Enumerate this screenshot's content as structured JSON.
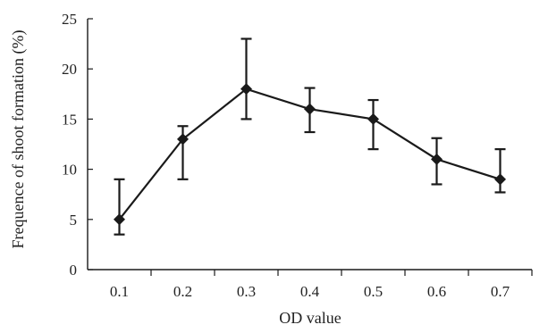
{
  "chart_data": {
    "type": "line",
    "title": "",
    "xlabel": "OD value",
    "ylabel": "Frequence of shoot formation (%)",
    "x": [
      "0.1",
      "0.2",
      "0.3",
      "0.4",
      "0.5",
      "0.6",
      "0.7"
    ],
    "ylim": [
      0,
      25
    ],
    "yticks": [
      "0",
      "5",
      "10",
      "15",
      "20",
      "25"
    ],
    "grid": false,
    "legend": "none",
    "series": [
      {
        "values": [
          5,
          13,
          18,
          16,
          15,
          11,
          9
        ],
        "error_lower": [
          3.5,
          9,
          15,
          13.7,
          12,
          8.5,
          7.7
        ],
        "error_upper": [
          9,
          14.3,
          23,
          18.1,
          16.9,
          13.1,
          12
        ]
      }
    ],
    "line_color": "#1a1a1a"
  }
}
